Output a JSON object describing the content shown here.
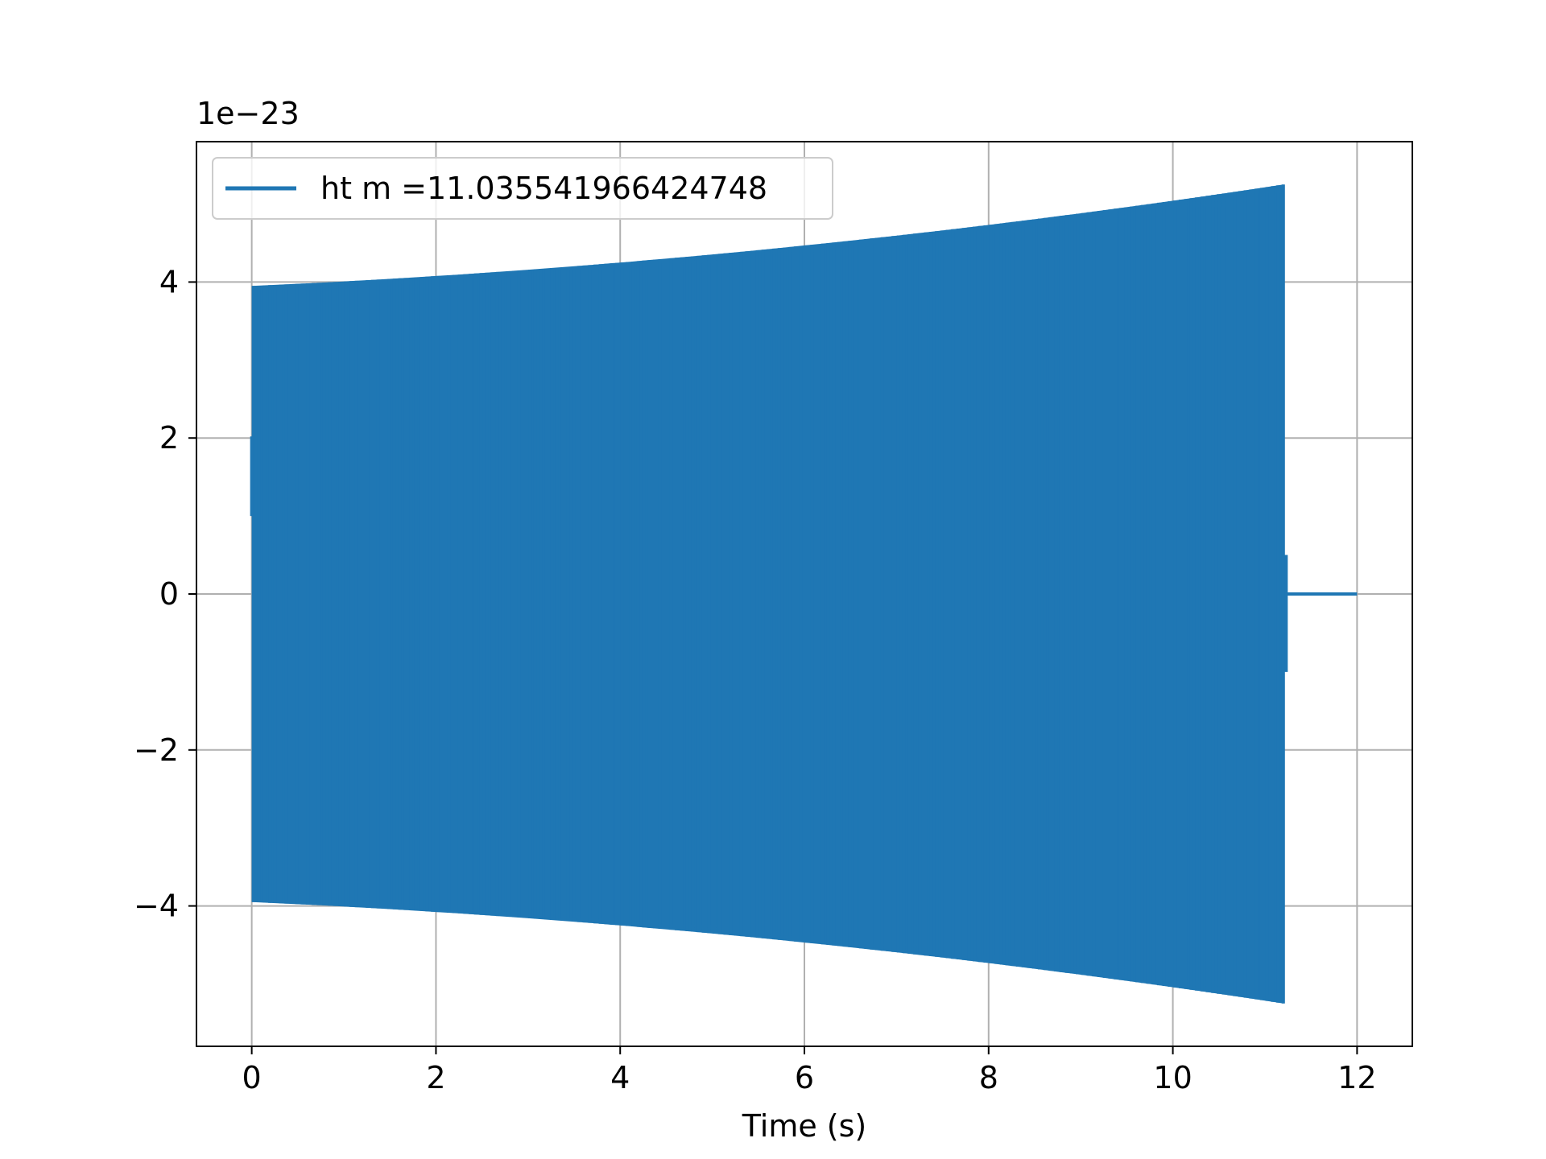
{
  "chart_data": {
    "type": "line",
    "title": "",
    "xlabel": "Time (s)",
    "ylabel": "",
    "y_scale_label": "1e−23",
    "xlim": [
      -0.6,
      12.6
    ],
    "ylim": [
      -5.8,
      5.8
    ],
    "x_ticks": [
      0,
      2,
      4,
      6,
      8,
      10,
      12
    ],
    "x_tick_labels": [
      "0",
      "2",
      "4",
      "6",
      "8",
      "10",
      "12"
    ],
    "y_ticks": [
      -4,
      -2,
      0,
      2,
      4
    ],
    "y_tick_labels": [
      "−4",
      "−2",
      "0",
      "2",
      "4"
    ],
    "grid": true,
    "legend_position": "upper-left",
    "series": [
      {
        "name": "ht m =11.035541966424748",
        "color": "#1f77b4",
        "description_points": {
          "t_start": 0,
          "t_signal_end": 11.2,
          "t_end": 12,
          "amplitude_start": 3.95,
          "amplitude_end": 5.25,
          "initial_value": 1.0,
          "tail_value": 0
        }
      }
    ]
  }
}
